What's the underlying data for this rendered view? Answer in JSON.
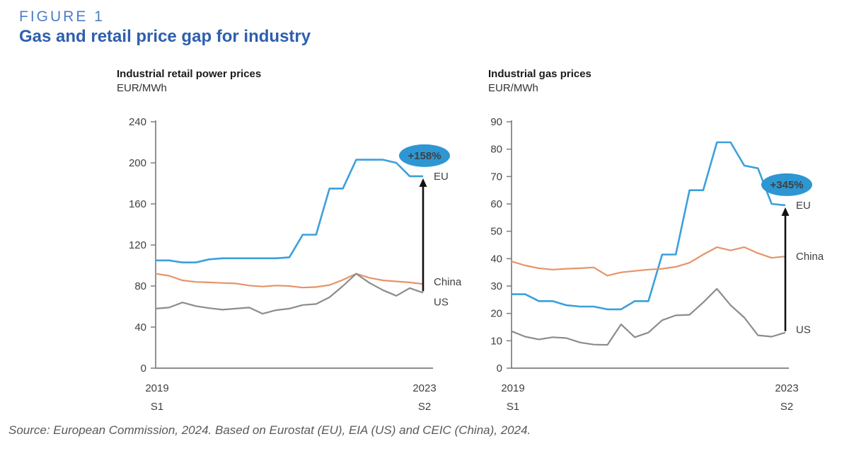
{
  "figure": {
    "label": "FIGURE 1",
    "title": "Gas and retail price gap for industry"
  },
  "source_note": "Source: European Commission, 2024. Based on Eurostat (EU), EIA (US) and CEIC (China), 2024.",
  "colors": {
    "eu": "#3BA0DC",
    "china": "#E5946A",
    "us": "#8C8C8C",
    "annotation": "#2E96D2",
    "axis": "#7f7f7f",
    "figure_label": "#4d7ec2",
    "figure_title": "#2e5fae"
  },
  "chart_data": [
    {
      "type": "line",
      "title": "Industrial retail power prices",
      "ylabel": "EUR/MWh",
      "ylim": [
        0,
        240
      ],
      "yticks": [
        0,
        40,
        80,
        120,
        160,
        200,
        240
      ],
      "x_start": {
        "year": "2019",
        "half": "S1"
      },
      "x_end": {
        "year": "2023",
        "half": "S2"
      },
      "annotation": "+158%",
      "arrow": {
        "from_series": "US",
        "to_series": "EU"
      },
      "series": [
        {
          "name": "EU",
          "color": "#3BA0DC",
          "label_dy": 0,
          "values": [
            105,
            105,
            103,
            103,
            106,
            107,
            107,
            107,
            107,
            107,
            108,
            130,
            130,
            175,
            175,
            203,
            203,
            203,
            200,
            187,
            187
          ]
        },
        {
          "name": "China",
          "color": "#E5946A",
          "label_dy": -3,
          "values": [
            92,
            90,
            85.5,
            84,
            83.5,
            83,
            82.5,
            80.5,
            79.5,
            80.5,
            80,
            78.5,
            79,
            81,
            86,
            92,
            88,
            85.5,
            84.5,
            83.5,
            82
          ]
        },
        {
          "name": "US",
          "color": "#8C8C8C",
          "label_dy": 13,
          "values": [
            58,
            59,
            64,
            60.5,
            58.5,
            57,
            58,
            59,
            53,
            56.5,
            58,
            61.5,
            62.5,
            69,
            80,
            92,
            83,
            76,
            70.5,
            78,
            73.5
          ]
        }
      ]
    },
    {
      "type": "line",
      "title": "Industrial gas prices",
      "ylabel": "EUR/MWh",
      "ylim": [
        0,
        90
      ],
      "yticks": [
        0,
        10,
        20,
        30,
        40,
        50,
        60,
        70,
        80,
        90
      ],
      "x_start": {
        "year": "2019",
        "half": "S1"
      },
      "x_end": {
        "year": "2023",
        "half": "S2"
      },
      "annotation": "+345%",
      "arrow": {
        "from_series": "US",
        "to_series": "EU"
      },
      "series": [
        {
          "name": "EU",
          "color": "#3BA0DC",
          "label_dy": 0,
          "values": [
            27,
            27,
            24.5,
            24.5,
            23,
            22.5,
            22.5,
            21.5,
            21.5,
            24.5,
            24.5,
            41.5,
            41.5,
            65,
            65,
            82.5,
            82.5,
            74,
            73,
            60,
            59.5
          ]
        },
        {
          "name": "China",
          "color": "#E5946A",
          "label_dy": 0,
          "values": [
            39,
            37.5,
            36.5,
            36,
            36.3,
            36.5,
            36.8,
            33.8,
            35,
            35.5,
            36,
            36.3,
            37,
            38.5,
            41.5,
            44.2,
            43,
            44.2,
            42,
            40.3,
            40.8
          ]
        },
        {
          "name": "US",
          "color": "#8C8C8C",
          "label_dy": -4,
          "values": [
            13.5,
            11.5,
            10.5,
            11.3,
            11,
            9.4,
            8.6,
            8.5,
            16,
            11.3,
            13,
            17.5,
            19.3,
            19.5,
            24,
            29,
            23,
            18.5,
            12,
            11.5,
            13
          ]
        }
      ]
    }
  ]
}
